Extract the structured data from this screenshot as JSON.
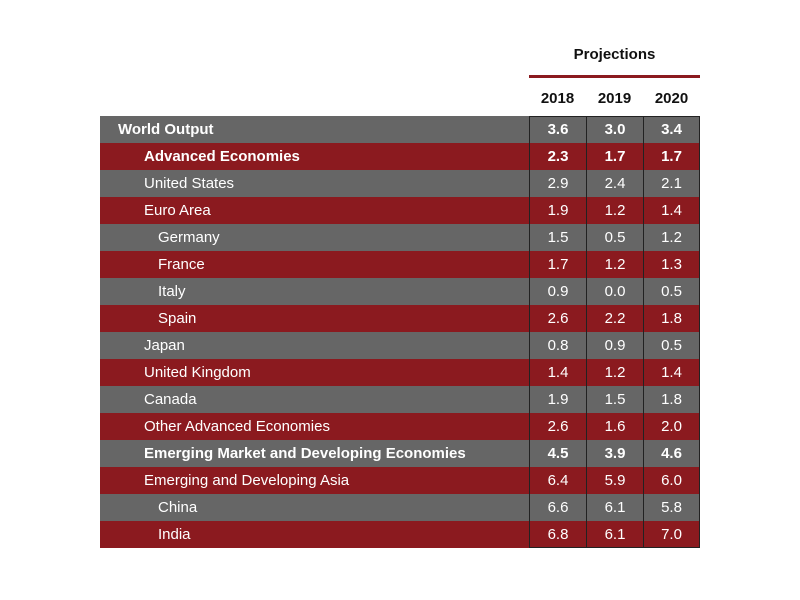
{
  "chart_data": {
    "type": "table",
    "header": "Projections",
    "columns": [
      "2018",
      "2019",
      "2020"
    ],
    "rows": [
      {
        "label": "World Output",
        "level": 0,
        "bold": true,
        "values": [
          "3.6",
          "3.0",
          "3.4"
        ]
      },
      {
        "label": "Advanced Economies",
        "level": 1,
        "bold": true,
        "values": [
          "2.3",
          "1.7",
          "1.7"
        ]
      },
      {
        "label": "United States",
        "level": 1,
        "bold": false,
        "values": [
          "2.9",
          "2.4",
          "2.1"
        ]
      },
      {
        "label": "Euro Area",
        "level": 1,
        "bold": false,
        "values": [
          "1.9",
          "1.2",
          "1.4"
        ]
      },
      {
        "label": "Germany",
        "level": 2,
        "bold": false,
        "values": [
          "1.5",
          "0.5",
          "1.2"
        ]
      },
      {
        "label": "France",
        "level": 2,
        "bold": false,
        "values": [
          "1.7",
          "1.2",
          "1.3"
        ]
      },
      {
        "label": "Italy",
        "level": 2,
        "bold": false,
        "values": [
          "0.9",
          "0.0",
          "0.5"
        ]
      },
      {
        "label": "Spain",
        "level": 2,
        "bold": false,
        "values": [
          "2.6",
          "2.2",
          "1.8"
        ]
      },
      {
        "label": "Japan",
        "level": 1,
        "bold": false,
        "values": [
          "0.8",
          "0.9",
          "0.5"
        ]
      },
      {
        "label": "United Kingdom",
        "level": 1,
        "bold": false,
        "values": [
          "1.4",
          "1.2",
          "1.4"
        ]
      },
      {
        "label": "Canada",
        "level": 1,
        "bold": false,
        "values": [
          "1.9",
          "1.5",
          "1.8"
        ]
      },
      {
        "label": "Other Advanced Economies",
        "level": 1,
        "bold": false,
        "values": [
          "2.6",
          "1.6",
          "2.0"
        ]
      },
      {
        "label": "Emerging Market and Developing Economies",
        "level": 1,
        "bold": true,
        "values": [
          "4.5",
          "3.9",
          "4.6"
        ]
      },
      {
        "label": "Emerging and Developing Asia",
        "level": 1,
        "bold": false,
        "values": [
          "6.4",
          "5.9",
          "6.0"
        ]
      },
      {
        "label": "China",
        "level": 2,
        "bold": false,
        "values": [
          "6.6",
          "6.1",
          "5.8"
        ]
      },
      {
        "label": "India",
        "level": 2,
        "bold": false,
        "values": [
          "6.8",
          "6.1",
          "7.0"
        ]
      }
    ],
    "colors": {
      "row_a": "#666666",
      "row_b": "#8b1a1f",
      "accent_rule": "#8b1a1f",
      "text": "#ffffff"
    }
  }
}
